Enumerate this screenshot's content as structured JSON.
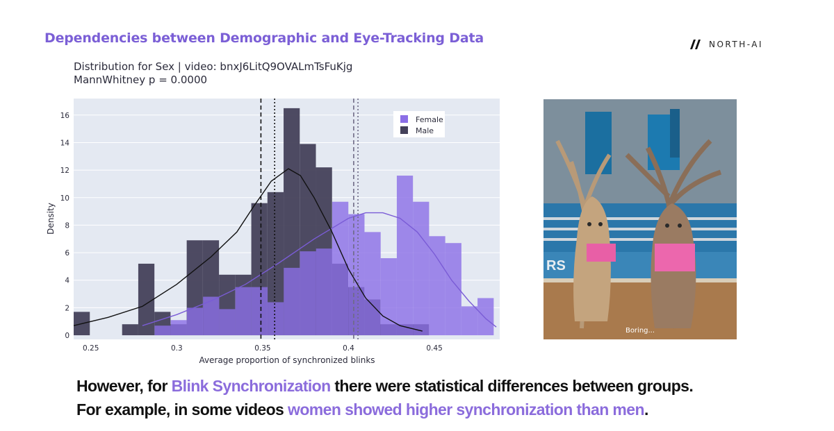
{
  "slide": {
    "title": "Dependencies between Demographic and Eye-Tracking Data",
    "logo_text": "NORTH-AI",
    "caption_line1": {
      "pre": "However, for ",
      "highlight": "Blink Synchronization",
      "post": " there were statistical differences between groups."
    },
    "caption_line2": {
      "pre": "For example, in some videos ",
      "highlight": "women showed higher synchronization than men",
      "post": "."
    },
    "accent_color": "#8b6cdc"
  },
  "image": {
    "subtitle": "Boring..."
  },
  "chart_data": {
    "type": "histogram",
    "title_line1": "Distribution for Sex | video: bnxJ6LitQ9OVALmTsFuKjg",
    "title_line2": "MannWhitney p = 0.0000",
    "xlabel": "Average proportion of synchronized blinks",
    "ylabel": "Density",
    "xlim": [
      0.24,
      0.488
    ],
    "ylim": [
      -0.3,
      17.2
    ],
    "xticks": [
      0.25,
      0.3,
      0.35,
      0.4,
      0.45
    ],
    "yticks": [
      0,
      2,
      4,
      6,
      8,
      10,
      12,
      14,
      16
    ],
    "bin_width": 0.0094,
    "legend_position": "top-right",
    "grid": true,
    "series": [
      {
        "name": "Female",
        "color": "#8b6ee6",
        "bins": [
          [
            0.2777,
            0.0
          ],
          [
            0.2871,
            0.7
          ],
          [
            0.2965,
            1.1
          ],
          [
            0.3059,
            2.0
          ],
          [
            0.3153,
            2.8
          ],
          [
            0.3247,
            1.9
          ],
          [
            0.3341,
            3.5
          ],
          [
            0.3435,
            3.5
          ],
          [
            0.3529,
            2.4
          ],
          [
            0.3623,
            4.9
          ],
          [
            0.3717,
            6.1
          ],
          [
            0.3811,
            6.3
          ],
          [
            0.3905,
            9.7
          ],
          [
            0.3999,
            8.8
          ],
          [
            0.4093,
            7.5
          ],
          [
            0.4187,
            5.6
          ],
          [
            0.4281,
            11.6
          ],
          [
            0.4375,
            9.7
          ],
          [
            0.4469,
            7.2
          ],
          [
            0.4563,
            6.7
          ],
          [
            0.4657,
            2.1
          ],
          [
            0.4751,
            2.7
          ]
        ],
        "mean": 0.403,
        "median": 0.4055,
        "kde": [
          [
            0.28,
            0.7
          ],
          [
            0.3,
            1.5
          ],
          [
            0.32,
            2.5
          ],
          [
            0.34,
            3.7
          ],
          [
            0.36,
            5.3
          ],
          [
            0.38,
            7.0
          ],
          [
            0.4,
            8.5
          ],
          [
            0.41,
            8.9
          ],
          [
            0.42,
            8.9
          ],
          [
            0.43,
            8.5
          ],
          [
            0.44,
            7.5
          ],
          [
            0.45,
            5.9
          ],
          [
            0.46,
            4.0
          ],
          [
            0.47,
            2.5
          ],
          [
            0.48,
            1.2
          ],
          [
            0.486,
            0.6
          ]
        ]
      },
      {
        "name": "Male",
        "color": "#44415a",
        "bins": [
          [
            0.24,
            1.7
          ],
          [
            0.2494,
            0.0
          ],
          [
            0.2588,
            0.0
          ],
          [
            0.2682,
            0.8
          ],
          [
            0.2776,
            5.2
          ],
          [
            0.287,
            1.7
          ],
          [
            0.2964,
            0.8
          ],
          [
            0.3058,
            6.9
          ],
          [
            0.3152,
            6.9
          ],
          [
            0.3246,
            4.4
          ],
          [
            0.334,
            4.4
          ],
          [
            0.3434,
            9.6
          ],
          [
            0.3528,
            10.4
          ],
          [
            0.3622,
            16.5
          ],
          [
            0.3716,
            13.9
          ],
          [
            0.381,
            12.2
          ],
          [
            0.3904,
            5.2
          ],
          [
            0.3998,
            3.5
          ],
          [
            0.4092,
            2.6
          ],
          [
            0.4186,
            0.8
          ],
          [
            0.428,
            0.8
          ],
          [
            0.4374,
            0.8
          ],
          [
            0.4468,
            0.0
          ]
        ],
        "mean": 0.349,
        "median": 0.357,
        "kde": [
          [
            0.24,
            0.7
          ],
          [
            0.26,
            1.3
          ],
          [
            0.28,
            2.1
          ],
          [
            0.3,
            3.7
          ],
          [
            0.32,
            5.7
          ],
          [
            0.335,
            7.5
          ],
          [
            0.345,
            9.4
          ],
          [
            0.355,
            11.2
          ],
          [
            0.365,
            12.1
          ],
          [
            0.372,
            11.6
          ],
          [
            0.38,
            10.0
          ],
          [
            0.39,
            7.6
          ],
          [
            0.4,
            4.8
          ],
          [
            0.41,
            2.7
          ],
          [
            0.42,
            1.4
          ],
          [
            0.43,
            0.7
          ],
          [
            0.443,
            0.3
          ]
        ]
      }
    ]
  }
}
